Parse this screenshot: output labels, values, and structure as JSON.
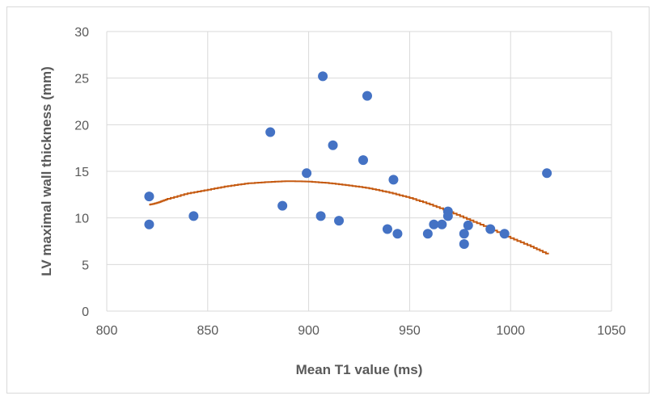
{
  "chart_data": {
    "type": "scatter",
    "xlabel": "Mean T1 value (ms)",
    "ylabel": "LV maximal wall thickness (mm)",
    "xlim": [
      800,
      1050
    ],
    "ylim": [
      0,
      30
    ],
    "x_ticks": [
      800,
      850,
      900,
      950,
      1000,
      1050
    ],
    "y_ticks": [
      0,
      5,
      10,
      15,
      20,
      25,
      30
    ],
    "grid": true,
    "legend": "none",
    "series": [
      {
        "type": "scatter",
        "color": "#4472c4",
        "points": [
          [
            821,
            12.3
          ],
          [
            821,
            9.3
          ],
          [
            843,
            10.2
          ],
          [
            881,
            19.2
          ],
          [
            887,
            11.3
          ],
          [
            899,
            14.8
          ],
          [
            906,
            10.2
          ],
          [
            907,
            25.2
          ],
          [
            912,
            17.8
          ],
          [
            915,
            9.7
          ],
          [
            927,
            16.2
          ],
          [
            929,
            23.1
          ],
          [
            939,
            8.8
          ],
          [
            942,
            14.1
          ],
          [
            944,
            8.3
          ],
          [
            959,
            8.3
          ],
          [
            962,
            9.3
          ],
          [
            966,
            9.3
          ],
          [
            969,
            10.7
          ],
          [
            969,
            10.2
          ],
          [
            977,
            8.3
          ],
          [
            977,
            7.2
          ],
          [
            979,
            9.2
          ],
          [
            990,
            8.8
          ],
          [
            997,
            8.3
          ],
          [
            1018,
            14.8
          ]
        ]
      },
      {
        "type": "trendline",
        "color": "#c55a11",
        "points": [
          [
            821,
            11.4
          ],
          [
            825,
            11.6
          ],
          [
            830,
            12.0
          ],
          [
            840,
            12.6
          ],
          [
            850,
            13.0
          ],
          [
            860,
            13.4
          ],
          [
            870,
            13.7
          ],
          [
            880,
            13.85
          ],
          [
            890,
            13.95
          ],
          [
            900,
            13.9
          ],
          [
            910,
            13.75
          ],
          [
            920,
            13.5
          ],
          [
            930,
            13.2
          ],
          [
            940,
            12.75
          ],
          [
            950,
            12.2
          ],
          [
            960,
            11.5
          ],
          [
            970,
            10.7
          ],
          [
            980,
            9.8
          ],
          [
            990,
            8.9
          ],
          [
            1000,
            7.9
          ],
          [
            1010,
            7.0
          ],
          [
            1019,
            6.1
          ]
        ]
      }
    ]
  }
}
